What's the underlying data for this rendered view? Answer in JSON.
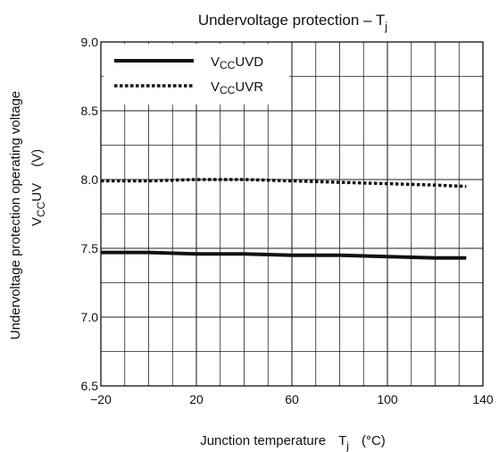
{
  "chart_data": {
    "type": "line",
    "title": {
      "main": "Undervoltage protection – T",
      "sub": "j"
    },
    "xlabel": {
      "main": "Junction temperature",
      "sym": "T",
      "sub": "j",
      "unit": "(°C)"
    },
    "ylabel": {
      "line1": "Undervoltage protection operating voltage",
      "line2_pre": "V",
      "line2_sub": "CC",
      "line2_post": "UV",
      "line2_unit": "(V)"
    },
    "xlim": [
      -20,
      140
    ],
    "ylim": [
      6.5,
      9.0
    ],
    "x_ticks": [
      "−20",
      "20",
      "60",
      "100",
      "140"
    ],
    "y_ticks": [
      "6.5",
      "7.0",
      "7.5",
      "8.0",
      "8.5",
      "9.0"
    ],
    "x_tick_values": [
      -20,
      20,
      60,
      100,
      140
    ],
    "y_tick_values": [
      6.5,
      7.0,
      7.5,
      8.0,
      8.5,
      9.0
    ],
    "grid": true,
    "legend_position": "top-left",
    "series": [
      {
        "name": "VCCUVD",
        "label": {
          "pre": "V",
          "sub": "CC",
          "post": "UVD"
        },
        "style": "solid",
        "color": "#111111",
        "x": [
          -20,
          0,
          20,
          40,
          60,
          80,
          100,
          120,
          133
        ],
        "y": [
          7.47,
          7.47,
          7.46,
          7.46,
          7.45,
          7.45,
          7.44,
          7.43,
          7.43
        ]
      },
      {
        "name": "VCCUVR",
        "label": {
          "pre": "V",
          "sub": "CC",
          "post": "UVR"
        },
        "style": "dotted",
        "color": "#111111",
        "x": [
          -20,
          0,
          20,
          40,
          60,
          80,
          100,
          120,
          133
        ],
        "y": [
          7.99,
          7.99,
          8.0,
          8.0,
          7.99,
          7.98,
          7.97,
          7.96,
          7.95
        ]
      }
    ]
  }
}
